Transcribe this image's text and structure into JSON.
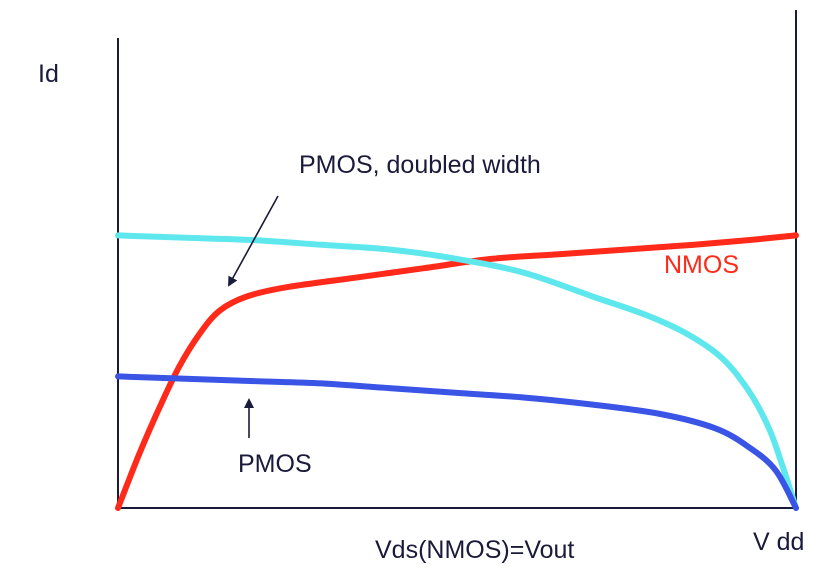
{
  "chart_data": {
    "type": "line",
    "ylabel": "Id",
    "xlabel": "Vds(NMOS)=Vout",
    "xmax_label": "V dd",
    "xlim": [
      0,
      1
    ],
    "ylim": [
      0,
      1
    ],
    "grid": false,
    "legend": "none",
    "series": [
      {
        "name": "NMOS",
        "color": "#ff2a1a",
        "label_color": "#ff2a1a",
        "points": [
          [
            0.0,
            0.0
          ],
          [
            0.03,
            0.11
          ],
          [
            0.06,
            0.21
          ],
          [
            0.09,
            0.3
          ],
          [
            0.12,
            0.37
          ],
          [
            0.15,
            0.42
          ],
          [
            0.19,
            0.45
          ],
          [
            0.25,
            0.47
          ],
          [
            0.35,
            0.49
          ],
          [
            0.45,
            0.51
          ],
          [
            0.55,
            0.53
          ],
          [
            0.65,
            0.54
          ],
          [
            0.75,
            0.55
          ],
          [
            0.85,
            0.56
          ],
          [
            0.93,
            0.57
          ],
          [
            1.0,
            0.58
          ]
        ]
      },
      {
        "name": "PMOS, doubled width",
        "color": "#5ee8ee",
        "points": [
          [
            0.0,
            0.58
          ],
          [
            0.1,
            0.575
          ],
          [
            0.2,
            0.57
          ],
          [
            0.3,
            0.56
          ],
          [
            0.4,
            0.55
          ],
          [
            0.5,
            0.53
          ],
          [
            0.6,
            0.5
          ],
          [
            0.7,
            0.45
          ],
          [
            0.78,
            0.41
          ],
          [
            0.84,
            0.37
          ],
          [
            0.89,
            0.32
          ],
          [
            0.93,
            0.25
          ],
          [
            0.96,
            0.17
          ],
          [
            0.98,
            0.09
          ],
          [
            1.0,
            0.0
          ]
        ]
      },
      {
        "name": "PMOS",
        "color": "#3a55e6",
        "points": [
          [
            0.0,
            0.28
          ],
          [
            0.1,
            0.275
          ],
          [
            0.2,
            0.27
          ],
          [
            0.3,
            0.265
          ],
          [
            0.4,
            0.255
          ],
          [
            0.5,
            0.245
          ],
          [
            0.6,
            0.235
          ],
          [
            0.7,
            0.22
          ],
          [
            0.8,
            0.2
          ],
          [
            0.88,
            0.17
          ],
          [
            0.93,
            0.13
          ],
          [
            0.97,
            0.08
          ],
          [
            1.0,
            0.0
          ]
        ]
      }
    ],
    "annotations": [
      {
        "text": "PMOS, doubled width",
        "points_to": "PMOS, doubled width"
      },
      {
        "text": "PMOS",
        "points_to": "PMOS"
      }
    ]
  }
}
